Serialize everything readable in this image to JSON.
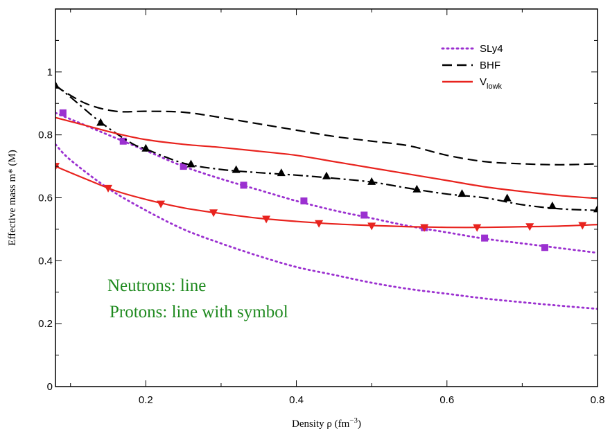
{
  "chart_data": {
    "type": "line",
    "xlabel": "Density ρ (fm",
    "xlabel_sup": "−3",
    "xlabel_close": ")",
    "ylabel": "Effective mass m* (M)",
    "xlim": [
      0.08,
      0.8
    ],
    "ylim": [
      0,
      1.2
    ],
    "xticks": [
      0.2,
      0.4,
      0.6,
      0.8
    ],
    "xtick_labels": [
      "0.2",
      "0.4",
      "0.6",
      "0.8"
    ],
    "yticks": [
      0,
      0.2,
      0.4,
      0.6,
      0.8,
      1
    ],
    "ytick_labels": [
      "0",
      "0.2",
      "0.4",
      "0.6",
      "0.8",
      "1"
    ],
    "grid": false,
    "legend_position": "top-right",
    "legend": [
      {
        "label": "SLy4",
        "sub": "",
        "style": "dotted",
        "color": "#9b30d0"
      },
      {
        "label": "BHF",
        "sub": "",
        "style": "longdash",
        "color": "#000000"
      },
      {
        "label": "V",
        "sub": "lowk",
        "style": "solid",
        "color": "#e8231e"
      }
    ],
    "annotations": [
      "Neutrons: line",
      "Protons: line with symbol"
    ],
    "series": [
      {
        "key": "sly4_n",
        "model": "SLy4",
        "particle": "neutron",
        "color": "#9b30d0",
        "dash": "2,5",
        "marker": "none",
        "x": [
          0.08,
          0.1,
          0.15,
          0.2,
          0.25,
          0.3,
          0.35,
          0.4,
          0.45,
          0.5,
          0.55,
          0.6,
          0.65,
          0.7,
          0.75,
          0.8
        ],
        "y": [
          0.77,
          0.72,
          0.63,
          0.56,
          0.5,
          0.455,
          0.415,
          0.38,
          0.355,
          0.33,
          0.31,
          0.295,
          0.28,
          0.268,
          0.257,
          0.247
        ]
      },
      {
        "key": "sly4_p",
        "model": "SLy4",
        "particle": "proton",
        "color": "#9b30d0",
        "dash": "2,5",
        "marker": "square",
        "x": [
          0.08,
          0.12,
          0.16,
          0.2,
          0.25,
          0.3,
          0.35,
          0.4,
          0.45,
          0.5,
          0.55,
          0.6,
          0.65,
          0.7,
          0.75,
          0.8
        ],
        "y": [
          0.87,
          0.83,
          0.79,
          0.75,
          0.7,
          0.66,
          0.625,
          0.59,
          0.56,
          0.535,
          0.51,
          0.49,
          0.47,
          0.455,
          0.44,
          0.425
        ],
        "markers_x": [
          0.09,
          0.17,
          0.25,
          0.33,
          0.41,
          0.49,
          0.57,
          0.65,
          0.73
        ],
        "markers_y": [
          0.87,
          0.78,
          0.7,
          0.64,
          0.59,
          0.545,
          0.505,
          0.472,
          0.442
        ]
      },
      {
        "key": "bhf_n",
        "model": "BHF",
        "particle": "neutron",
        "color": "#000000",
        "dash": "14,7",
        "marker": "none",
        "x": [
          0.08,
          0.12,
          0.16,
          0.2,
          0.25,
          0.3,
          0.35,
          0.4,
          0.45,
          0.5,
          0.55,
          0.6,
          0.65,
          0.7,
          0.75,
          0.8
        ],
        "y": [
          0.955,
          0.9,
          0.875,
          0.875,
          0.872,
          0.855,
          0.835,
          0.815,
          0.795,
          0.78,
          0.765,
          0.735,
          0.715,
          0.708,
          0.705,
          0.708
        ]
      },
      {
        "key": "bhf_p",
        "model": "BHF",
        "particle": "proton",
        "color": "#000000",
        "dash": "14,5,3,5",
        "marker": "triangle-up",
        "x": [
          0.08,
          0.1,
          0.14,
          0.18,
          0.2,
          0.25,
          0.3,
          0.35,
          0.4,
          0.45,
          0.5,
          0.55,
          0.6,
          0.65,
          0.7,
          0.75,
          0.8
        ],
        "y": [
          0.958,
          0.92,
          0.84,
          0.775,
          0.755,
          0.71,
          0.69,
          0.68,
          0.672,
          0.662,
          0.65,
          0.63,
          0.612,
          0.6,
          0.578,
          0.565,
          0.56
        ],
        "markers_x": [
          0.08,
          0.14,
          0.2,
          0.26,
          0.32,
          0.38,
          0.44,
          0.5,
          0.56,
          0.62,
          0.68,
          0.74,
          0.8
        ],
        "markers_y": [
          0.958,
          0.84,
          0.758,
          0.708,
          0.69,
          0.68,
          0.67,
          0.652,
          0.628,
          0.614,
          0.6,
          0.575,
          0.565
        ]
      },
      {
        "key": "vlowk_n",
        "model": "Vlowk",
        "particle": "neutron",
        "color": "#e8231e",
        "dash": "",
        "marker": "none",
        "x": [
          0.08,
          0.12,
          0.16,
          0.2,
          0.25,
          0.3,
          0.35,
          0.4,
          0.45,
          0.5,
          0.55,
          0.6,
          0.65,
          0.7,
          0.75,
          0.8
        ],
        "y": [
          0.855,
          0.83,
          0.805,
          0.785,
          0.77,
          0.76,
          0.748,
          0.735,
          0.715,
          0.695,
          0.675,
          0.655,
          0.635,
          0.62,
          0.607,
          0.598
        ]
      },
      {
        "key": "vlowk_p",
        "model": "Vlowk",
        "particle": "proton",
        "color": "#e8231e",
        "dash": "",
        "marker": "triangle-down",
        "x": [
          0.08,
          0.12,
          0.16,
          0.2,
          0.25,
          0.3,
          0.35,
          0.4,
          0.45,
          0.5,
          0.55,
          0.6,
          0.65,
          0.7,
          0.75,
          0.8
        ],
        "y": [
          0.7,
          0.66,
          0.622,
          0.595,
          0.568,
          0.55,
          0.535,
          0.525,
          0.517,
          0.512,
          0.508,
          0.506,
          0.506,
          0.508,
          0.51,
          0.515
        ],
        "markers_x": [
          0.08,
          0.15,
          0.22,
          0.29,
          0.36,
          0.43,
          0.5,
          0.57,
          0.64,
          0.71,
          0.78
        ],
        "markers_y": [
          0.7,
          0.63,
          0.58,
          0.552,
          0.532,
          0.518,
          0.51,
          0.505,
          0.505,
          0.508,
          0.512
        ]
      }
    ]
  }
}
